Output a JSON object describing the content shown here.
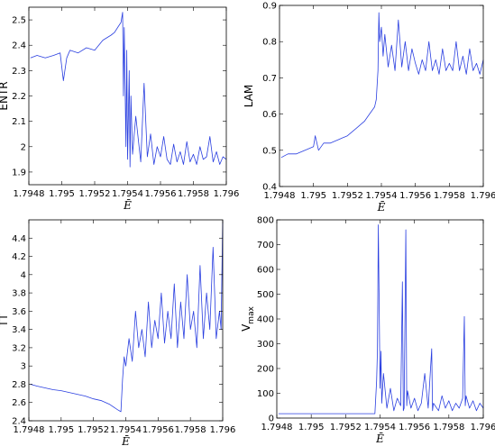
{
  "chart_data": [
    {
      "type": "line",
      "ylabel": "ENTR",
      "xlabel": "Ē",
      "xlim": [
        1.7948,
        1.796
      ],
      "ylim": [
        1.85,
        2.55
      ],
      "xticks": [
        "1.7948",
        "1.795",
        "1.7952",
        "1.7954",
        "1.7956",
        "1.7958",
        "1.796"
      ],
      "yticks": [
        "1.9",
        "2",
        "2.1",
        "2.2",
        "2.3",
        "2.4",
        "2.5"
      ],
      "series": [
        {
          "x": [
            1.79481,
            1.79485,
            1.7949,
            1.79495,
            1.79499,
            1.79501,
            1.79503,
            1.79505,
            1.7951,
            1.79515,
            1.7952,
            1.79525,
            1.7953,
            1.79532,
            1.79534,
            1.79536,
            1.79537,
            1.795375,
            1.79538,
            1.79539,
            1.795395,
            1.7954,
            1.79541,
            1.795415,
            1.79542,
            1.79543,
            1.79545,
            1.79548,
            1.7955,
            1.79552,
            1.79554,
            1.79556,
            1.79558,
            1.7956,
            1.79562,
            1.79564,
            1.79566,
            1.79568,
            1.7957,
            1.79572,
            1.79574,
            1.79576,
            1.79578,
            1.7958,
            1.79582,
            1.79584,
            1.79586,
            1.79588,
            1.7959,
            1.79592,
            1.79594,
            1.79596,
            1.79598,
            1.796
          ],
          "y": [
            2.35,
            2.36,
            2.35,
            2.36,
            2.37,
            2.26,
            2.35,
            2.38,
            2.37,
            2.39,
            2.38,
            2.42,
            2.44,
            2.45,
            2.47,
            2.49,
            2.53,
            2.2,
            2.47,
            2.0,
            2.38,
            1.95,
            2.3,
            1.92,
            2.2,
            1.97,
            2.12,
            1.94,
            2.25,
            1.96,
            2.05,
            1.93,
            2.0,
            1.96,
            2.04,
            1.95,
            1.93,
            2.01,
            1.94,
            1.98,
            1.93,
            2.02,
            1.94,
            1.97,
            1.93,
            2.0,
            1.95,
            1.96,
            2.04,
            1.94,
            1.98,
            1.93,
            1.96,
            1.95
          ]
        }
      ]
    },
    {
      "type": "line",
      "ylabel": "LAM",
      "xlabel": "Ē",
      "xlim": [
        1.7948,
        1.796
      ],
      "ylim": [
        0.4,
        0.9
      ],
      "xticks": [
        "1.7948",
        "1.795",
        "1.7952",
        "1.7954",
        "1.7956",
        "1.7958",
        "1.796"
      ],
      "yticks": [
        "0.4",
        "0.5",
        "0.6",
        "0.7",
        "0.8",
        "0.9"
      ],
      "series": [
        {
          "x": [
            1.79481,
            1.79485,
            1.7949,
            1.79495,
            1.795,
            1.79501,
            1.79503,
            1.79506,
            1.7951,
            1.79515,
            1.7952,
            1.79525,
            1.7953,
            1.79533,
            1.79536,
            1.79537,
            1.79538,
            1.795385,
            1.79539,
            1.7954,
            1.79541,
            1.79542,
            1.79544,
            1.79546,
            1.79548,
            1.7955,
            1.79552,
            1.79554,
            1.79556,
            1.79558,
            1.7956,
            1.79562,
            1.79564,
            1.79566,
            1.79568,
            1.7957,
            1.79572,
            1.79574,
            1.79576,
            1.79578,
            1.7958,
            1.79582,
            1.79584,
            1.79586,
            1.79588,
            1.7959,
            1.79592,
            1.79594,
            1.79596,
            1.79598,
            1.796
          ],
          "y": [
            0.48,
            0.49,
            0.49,
            0.5,
            0.51,
            0.54,
            0.5,
            0.52,
            0.52,
            0.53,
            0.54,
            0.56,
            0.58,
            0.6,
            0.62,
            0.64,
            0.72,
            0.88,
            0.8,
            0.84,
            0.76,
            0.82,
            0.73,
            0.79,
            0.72,
            0.86,
            0.73,
            0.8,
            0.72,
            0.78,
            0.74,
            0.71,
            0.75,
            0.72,
            0.8,
            0.72,
            0.75,
            0.71,
            0.78,
            0.72,
            0.74,
            0.72,
            0.8,
            0.72,
            0.76,
            0.71,
            0.78,
            0.72,
            0.74,
            0.71,
            0.75
          ]
        }
      ]
    },
    {
      "type": "line",
      "ylabel": "TT",
      "xlabel": "Ē",
      "xlim": [
        1.7948,
        1.796
      ],
      "ylim": [
        2.4,
        4.6
      ],
      "xticks": [
        "1.7948",
        "1.795",
        "1.7952",
        "1.7954",
        "1.7956",
        "1.7958",
        "1.796"
      ],
      "yticks": [
        "2.4",
        "2.6",
        "2.8",
        "3",
        "3.2",
        "3.4",
        "3.6",
        "3.8",
        "4",
        "4.2",
        "4.4"
      ],
      "series": [
        {
          "x": [
            1.79481,
            1.79485,
            1.7949,
            1.79495,
            1.795,
            1.79505,
            1.7951,
            1.79515,
            1.7952,
            1.79525,
            1.7953,
            1.79535,
            1.79537,
            1.79538,
            1.79539,
            1.7954,
            1.79542,
            1.79544,
            1.79546,
            1.79548,
            1.7955,
            1.79552,
            1.79554,
            1.79556,
            1.79558,
            1.7956,
            1.79562,
            1.79564,
            1.79566,
            1.79568,
            1.7957,
            1.79572,
            1.79574,
            1.79576,
            1.79578,
            1.7958,
            1.79582,
            1.79584,
            1.79586,
            1.79588,
            1.7959,
            1.79592,
            1.79594,
            1.79596,
            1.79598,
            1.79599,
            1.796
          ],
          "y": [
            2.8,
            2.78,
            2.76,
            2.74,
            2.73,
            2.71,
            2.69,
            2.67,
            2.64,
            2.62,
            2.58,
            2.52,
            2.5,
            2.85,
            3.1,
            3.0,
            3.3,
            3.05,
            3.6,
            3.2,
            3.4,
            3.1,
            3.7,
            3.2,
            3.5,
            3.3,
            3.8,
            3.25,
            3.6,
            3.3,
            3.9,
            3.2,
            3.7,
            3.3,
            4.0,
            3.4,
            3.6,
            3.2,
            4.1,
            3.3,
            3.8,
            3.4,
            4.3,
            3.3,
            3.6,
            3.4,
            4.6
          ]
        }
      ]
    },
    {
      "type": "line",
      "ylabel": "V",
      "ylabel_sub": "max",
      "xlabel": "Ē",
      "xlim": [
        1.7948,
        1.796
      ],
      "ylim": [
        0,
        800
      ],
      "xticks": [
        "1.7948",
        "1.795",
        "1.7952",
        "1.7954",
        "1.7956",
        "1.7958",
        "1.796"
      ],
      "yticks": [
        "0",
        "100",
        "200",
        "300",
        "400",
        "500",
        "600",
        "700",
        "800"
      ],
      "series": [
        {
          "x": [
            1.79481,
            1.7949,
            1.795,
            1.7951,
            1.7952,
            1.7953,
            1.79535,
            1.79537,
            1.79538,
            1.795385,
            1.79539,
            1.7954,
            1.795405,
            1.79541,
            1.79542,
            1.79544,
            1.79546,
            1.79548,
            1.7955,
            1.79552,
            1.79553,
            1.795535,
            1.79554,
            1.79555,
            1.795555,
            1.79556,
            1.79558,
            1.7956,
            1.79562,
            1.79564,
            1.79566,
            1.79568,
            1.7957,
            1.795705,
            1.79571,
            1.79574,
            1.79576,
            1.79578,
            1.7958,
            1.79582,
            1.79584,
            1.79586,
            1.79588,
            1.79589,
            1.795895,
            1.7959,
            1.79592,
            1.79594,
            1.79596,
            1.79598,
            1.796
          ],
          "y": [
            18,
            18,
            18,
            18,
            18,
            18,
            18,
            18,
            150,
            270,
            780,
            120,
            270,
            60,
            180,
            40,
            120,
            30,
            80,
            50,
            550,
            30,
            40,
            760,
            50,
            110,
            40,
            80,
            30,
            60,
            180,
            40,
            280,
            30,
            60,
            30,
            90,
            40,
            70,
            30,
            60,
            40,
            80,
            410,
            50,
            90,
            40,
            70,
            30,
            60,
            40
          ]
        }
      ]
    }
  ]
}
